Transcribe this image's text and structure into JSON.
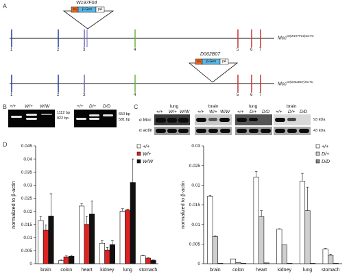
{
  "panel_labels": {
    "a": "A",
    "b": "B",
    "c": "C",
    "d": "D"
  },
  "panel_a": {
    "exon_labels": [
      "1",
      "2",
      "3",
      "4",
      "5",
      "6",
      "7"
    ],
    "construct1": {
      "id": "W197F04",
      "boxes": [
        "SA",
        "β-Geo",
        "pA"
      ],
      "allele_base": "Mcc",
      "allele_sup": "Gt(W197F04)SGTC"
    },
    "construct2": {
      "id": "D062B07",
      "boxes": [
        "SA",
        "β-Geo",
        "pA"
      ],
      "allele_base": "Mcc",
      "allele_sup": "Gt(D062B07)SGTC"
    }
  },
  "panel_b": {
    "gel1": {
      "lanes": [
        "+/+",
        "W/+",
        "W/W"
      ],
      "sizes": [
        "1112 bp",
        "922 bp"
      ]
    },
    "gel2": {
      "lanes": [
        "+/+",
        "D/+",
        "D/D"
      ],
      "sizes": [
        "650 bp",
        "581 bp"
      ]
    }
  },
  "panel_c": {
    "groups": [
      {
        "tissue": "lung",
        "lanes": [
          "+/+",
          "W/+",
          "W/W"
        ]
      },
      {
        "tissue": "brain",
        "lanes": [
          "+/+",
          "W/+",
          "W/W"
        ]
      },
      {
        "tissue": "lung",
        "lanes": [
          "+/+",
          "D/+",
          "D/D"
        ]
      },
      {
        "tissue": "brain",
        "lanes": [
          "+/+",
          "D/+",
          "D/D"
        ]
      }
    ],
    "row_labels": [
      "α Mcc",
      "α actin"
    ],
    "kda": [
      "93 kDa",
      "43 kDa"
    ]
  },
  "chart_data": [
    {
      "type": "bar",
      "categories": [
        "brain",
        "colon",
        "heart",
        "kidney",
        "lung",
        "stomach"
      ],
      "ylabel": "normalized to β-actin",
      "ylim": [
        0,
        0.045
      ],
      "yticks": [
        "0",
        "0.005",
        "0.01",
        "0.015",
        "0.02",
        "0.025",
        "0.03",
        "0.035",
        "0.04",
        "0.045"
      ],
      "series": [
        {
          "name": "+/+",
          "color": "#ffffff",
          "values": [
            0.0165,
            0.0012,
            0.022,
            0.0078,
            0.02,
            0.003
          ],
          "errors": [
            0.0015,
            0.0003,
            0.001,
            0.001,
            0.001,
            0.0003
          ]
        },
        {
          "name": "W/+",
          "color": "#dd2222",
          "values": [
            0.0128,
            0.0026,
            0.015,
            0.0052,
            0.0205,
            0.0021
          ],
          "errors": [
            0.002,
            0.0004,
            0.003,
            0.001,
            0.0003,
            0.0002
          ]
        },
        {
          "name": "W/W",
          "color": "#111111",
          "values": [
            0.0182,
            0.0028,
            0.019,
            0.0073,
            0.031,
            0.0013
          ],
          "errors": [
            0.0085,
            0.0004,
            0.005,
            0.0015,
            0.009,
            0.0002
          ]
        }
      ],
      "legend_position": "top-right"
    },
    {
      "type": "bar",
      "categories": [
        "brain",
        "colon",
        "heart",
        "kidney",
        "lung",
        "stomach"
      ],
      "ylabel": "normalized to β-actin",
      "ylim": [
        0,
        0.03
      ],
      "yticks": [
        "0",
        "0.005",
        "0.01",
        "0.015",
        "0.02",
        "0.025",
        "0.03"
      ],
      "series": [
        {
          "name": "+/+",
          "color": "#ffffff",
          "values": [
            0.0172,
            0.0012,
            0.022,
            0.0088,
            0.021,
            0.0037
          ],
          "errors": [
            0.0002,
            0.0,
            0.0015,
            0.0001,
            0.002,
            0.0002
          ]
        },
        {
          "name": "D/+",
          "color": "#cfcfcf",
          "values": [
            0.0069,
            0.0003,
            0.012,
            0.0048,
            0.0135,
            0.0022
          ],
          "errors": [
            0.0002,
            0.0,
            0.0015,
            0.0,
            0.006,
            0.0002
          ]
        },
        {
          "name": "D/D",
          "color": "#888888",
          "values": [
            0.0001,
            0.0001,
            0.0002,
            0.0001,
            0.0001,
            0.0001
          ],
          "errors": [
            0,
            0,
            0,
            0,
            0,
            0
          ]
        }
      ],
      "legend_position": "top-right"
    }
  ]
}
